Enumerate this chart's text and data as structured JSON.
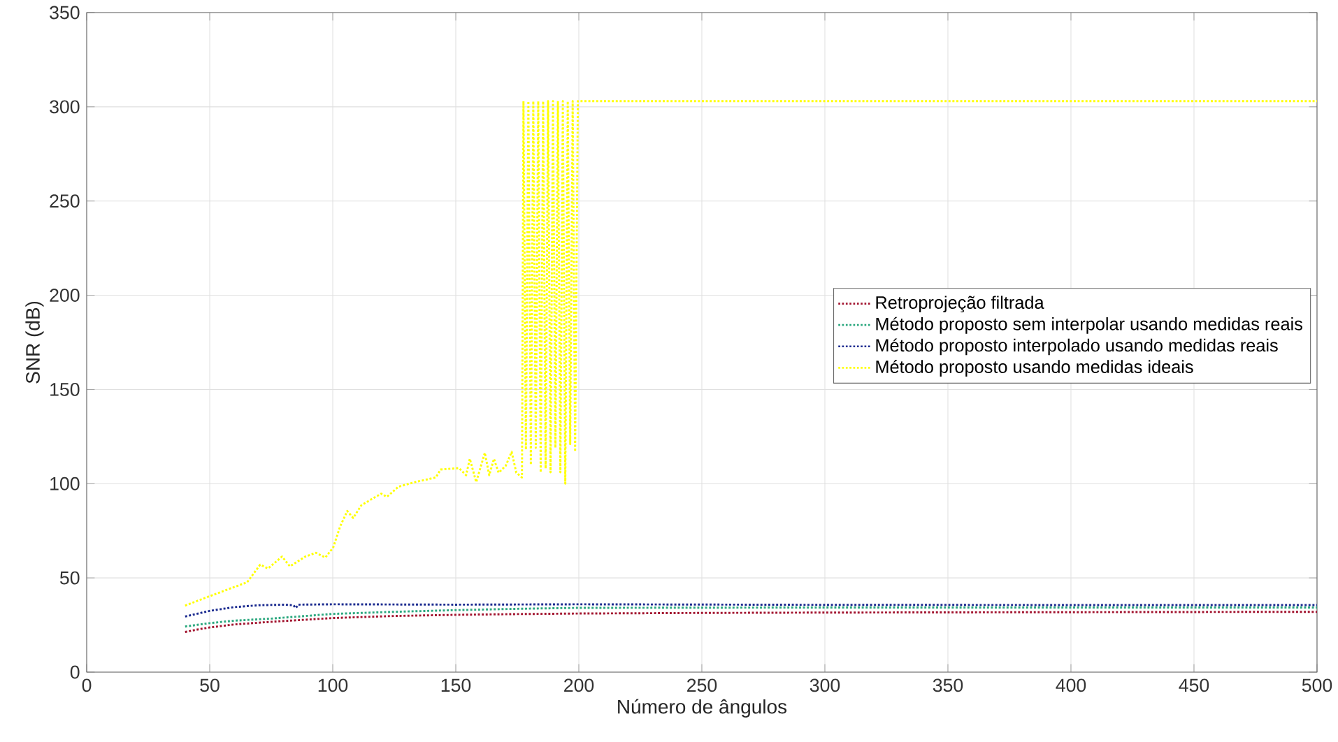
{
  "chart_data": {
    "type": "line",
    "xlabel": "Número de ângulos",
    "ylabel": "SNR (dB)",
    "xlim": [
      0,
      500
    ],
    "ylim": [
      0,
      350
    ],
    "xticks": [
      0,
      50,
      100,
      150,
      200,
      250,
      300,
      350,
      400,
      450,
      500
    ],
    "yticks": [
      0,
      50,
      100,
      150,
      200,
      250,
      300,
      350
    ],
    "grid": true,
    "legend": "right",
    "marker": "none",
    "line_style": "dotted",
    "series": [
      {
        "name": "Retroprojeção filtrada",
        "color": "#a2142f",
        "x": [
          40,
          45,
          50,
          60,
          75,
          100,
          125,
          150,
          175,
          200,
          250,
          300,
          400,
          500
        ],
        "values": [
          21.3,
          22.6,
          23.7,
          25.3,
          26.7,
          28.7,
          29.8,
          30.4,
          30.8,
          31.1,
          31.4,
          31.6,
          31.8,
          32
        ]
      },
      {
        "name": "Método proposto sem interpolar usando medidas reais",
        "color": "#2ca87f",
        "x": [
          40,
          45,
          50,
          60,
          75,
          100,
          125,
          150,
          175,
          200,
          250,
          300,
          400,
          500
        ],
        "values": [
          24.2,
          25.1,
          26,
          27.3,
          28.4,
          30.9,
          32,
          32.9,
          33.6,
          34.1,
          34.2,
          34.3,
          34.3,
          34.3
        ]
      },
      {
        "name": "Método proposto interpolado usando medidas reais",
        "color": "#1a2a8f",
        "x": [
          40,
          45,
          50,
          55,
          60,
          65,
          70,
          80,
          84,
          85,
          86,
          100,
          150,
          200,
          300,
          400,
          500
        ],
        "values": [
          29.5,
          31,
          32.5,
          33.5,
          34.5,
          35,
          35.5,
          35.8,
          35.5,
          34,
          35.8,
          36,
          35.8,
          36,
          35.7,
          35.6,
          35.6
        ]
      },
      {
        "name": "Método proposto usando medidas ideais",
        "color": "#ffff00",
        "x": [
          40,
          50,
          65.2,
          70.5,
          73.7,
          79.4,
          82.6,
          88.8,
          93.2,
          97,
          100.2,
          103,
          105.9,
          108.3,
          111.6,
          116.3,
          119.7,
          122,
          126.7,
          133.3,
          141.9,
          143.8,
          151.3,
          154.2,
          155.7,
          158.3,
          161.8,
          163.6,
          165.5,
          167.4,
          170.3,
          172.7,
          174.6,
          176.9,
          177.5,
          178.5,
          179.5,
          180.5,
          181.5,
          182.5,
          183.5,
          184.5,
          185.5,
          186.5,
          187.5,
          188.5,
          189.5,
          190.5,
          191.5,
          192.5,
          193.5,
          194.5,
          195.5,
          196.5,
          197.5,
          198.5,
          199.6,
          200,
          300,
          400,
          500
        ],
        "values": [
          35.3,
          40.3,
          47.7,
          57,
          55,
          61.3,
          56.1,
          61.3,
          63.3,
          60.8,
          66.2,
          77.3,
          85.5,
          81.8,
          88.5,
          92.2,
          94.7,
          93,
          98.4,
          100.8,
          103.3,
          107.5,
          108.3,
          104.5,
          113.2,
          100.8,
          116.4,
          104.5,
          113.2,
          105.8,
          109.5,
          116.9,
          105.8,
          103.3,
          303,
          118,
          303,
          110,
          303,
          119,
          303,
          106,
          303,
          108,
          303,
          106,
          303,
          119,
          303,
          106,
          303,
          100,
          303,
          121,
          303,
          117,
          303,
          303,
          303,
          303,
          303
        ]
      }
    ]
  }
}
